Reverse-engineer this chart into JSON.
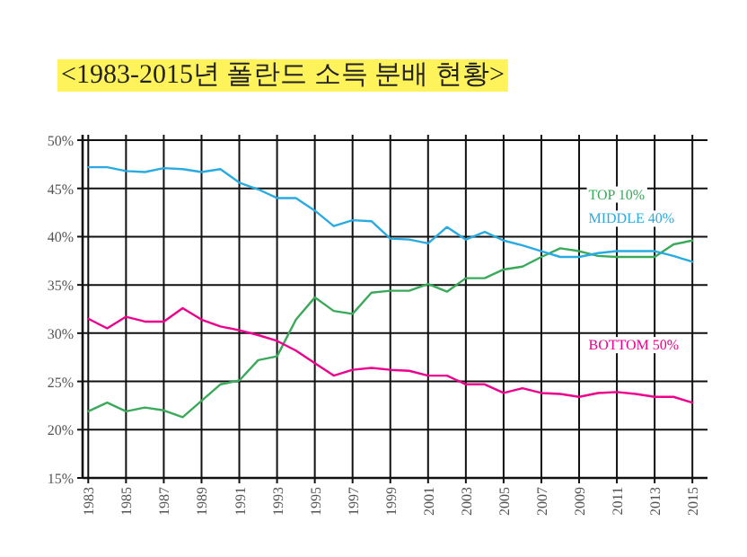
{
  "chart_data": {
    "type": "line",
    "title": "<1983-2015년 폴란드 소득 분배 현황>",
    "x": [
      1983,
      1984,
      1985,
      1986,
      1987,
      1988,
      1989,
      1990,
      1991,
      1992,
      1993,
      1994,
      1995,
      1996,
      1997,
      1998,
      1999,
      2000,
      2001,
      2002,
      2003,
      2004,
      2005,
      2006,
      2007,
      2008,
      2009,
      2010,
      2011,
      2012,
      2013,
      2014,
      2015
    ],
    "series": [
      {
        "name": "TOP 10%",
        "color": "#3aaa5a",
        "values": [
          21.9,
          22.8,
          21.9,
          22.3,
          22.0,
          21.3,
          23.0,
          24.7,
          25.1,
          27.2,
          27.6,
          31.4,
          33.7,
          32.3,
          32.0,
          34.2,
          34.4,
          34.4,
          35.1,
          34.3,
          35.7,
          35.7,
          36.6,
          36.9,
          37.9,
          38.8,
          38.5,
          38.0,
          37.9,
          37.9,
          37.9,
          39.2,
          39.6
        ]
      },
      {
        "name": "MIDDLE 40%",
        "color": "#29abe2",
        "values": [
          47.2,
          47.2,
          46.8,
          46.7,
          47.1,
          47.0,
          46.7,
          47.0,
          45.6,
          44.9,
          44.0,
          44.0,
          42.7,
          41.1,
          41.7,
          41.6,
          39.8,
          39.7,
          39.3,
          41.0,
          39.7,
          40.5,
          39.6,
          39.1,
          38.5,
          37.9,
          37.9,
          38.3,
          38.5,
          38.5,
          38.5,
          38.0,
          37.4
        ]
      },
      {
        "name": "BOTTOM 50%",
        "color": "#ec008c",
        "values": [
          31.5,
          30.5,
          31.7,
          31.2,
          31.2,
          32.6,
          31.4,
          30.7,
          30.3,
          29.8,
          29.2,
          28.2,
          26.9,
          25.6,
          26.2,
          26.4,
          26.2,
          26.1,
          25.6,
          25.6,
          24.7,
          24.7,
          23.8,
          24.3,
          23.8,
          23.7,
          23.4,
          23.8,
          23.9,
          23.7,
          23.4,
          23.4,
          22.8
        ]
      }
    ],
    "xlim": [
      1982.7,
      2015.8
    ],
    "xticks": [
      1983,
      1985,
      1987,
      1989,
      1991,
      1993,
      1995,
      1997,
      1999,
      2001,
      2003,
      2005,
      2007,
      2009,
      2011,
      2013,
      2015
    ],
    "ylim": [
      15,
      50
    ],
    "yticks": [
      {
        "value": 15,
        "label": "15%"
      },
      {
        "value": 20,
        "label": "20%"
      },
      {
        "value": 25,
        "label": "25%"
      },
      {
        "value": 30,
        "label": "30%"
      },
      {
        "value": 35,
        "label": "35%"
      },
      {
        "value": 40,
        "label": "40%"
      },
      {
        "value": 45,
        "label": "45%"
      },
      {
        "value": 50,
        "label": "50%"
      }
    ],
    "grid": true,
    "marker": "none",
    "line_style": "solid"
  }
}
